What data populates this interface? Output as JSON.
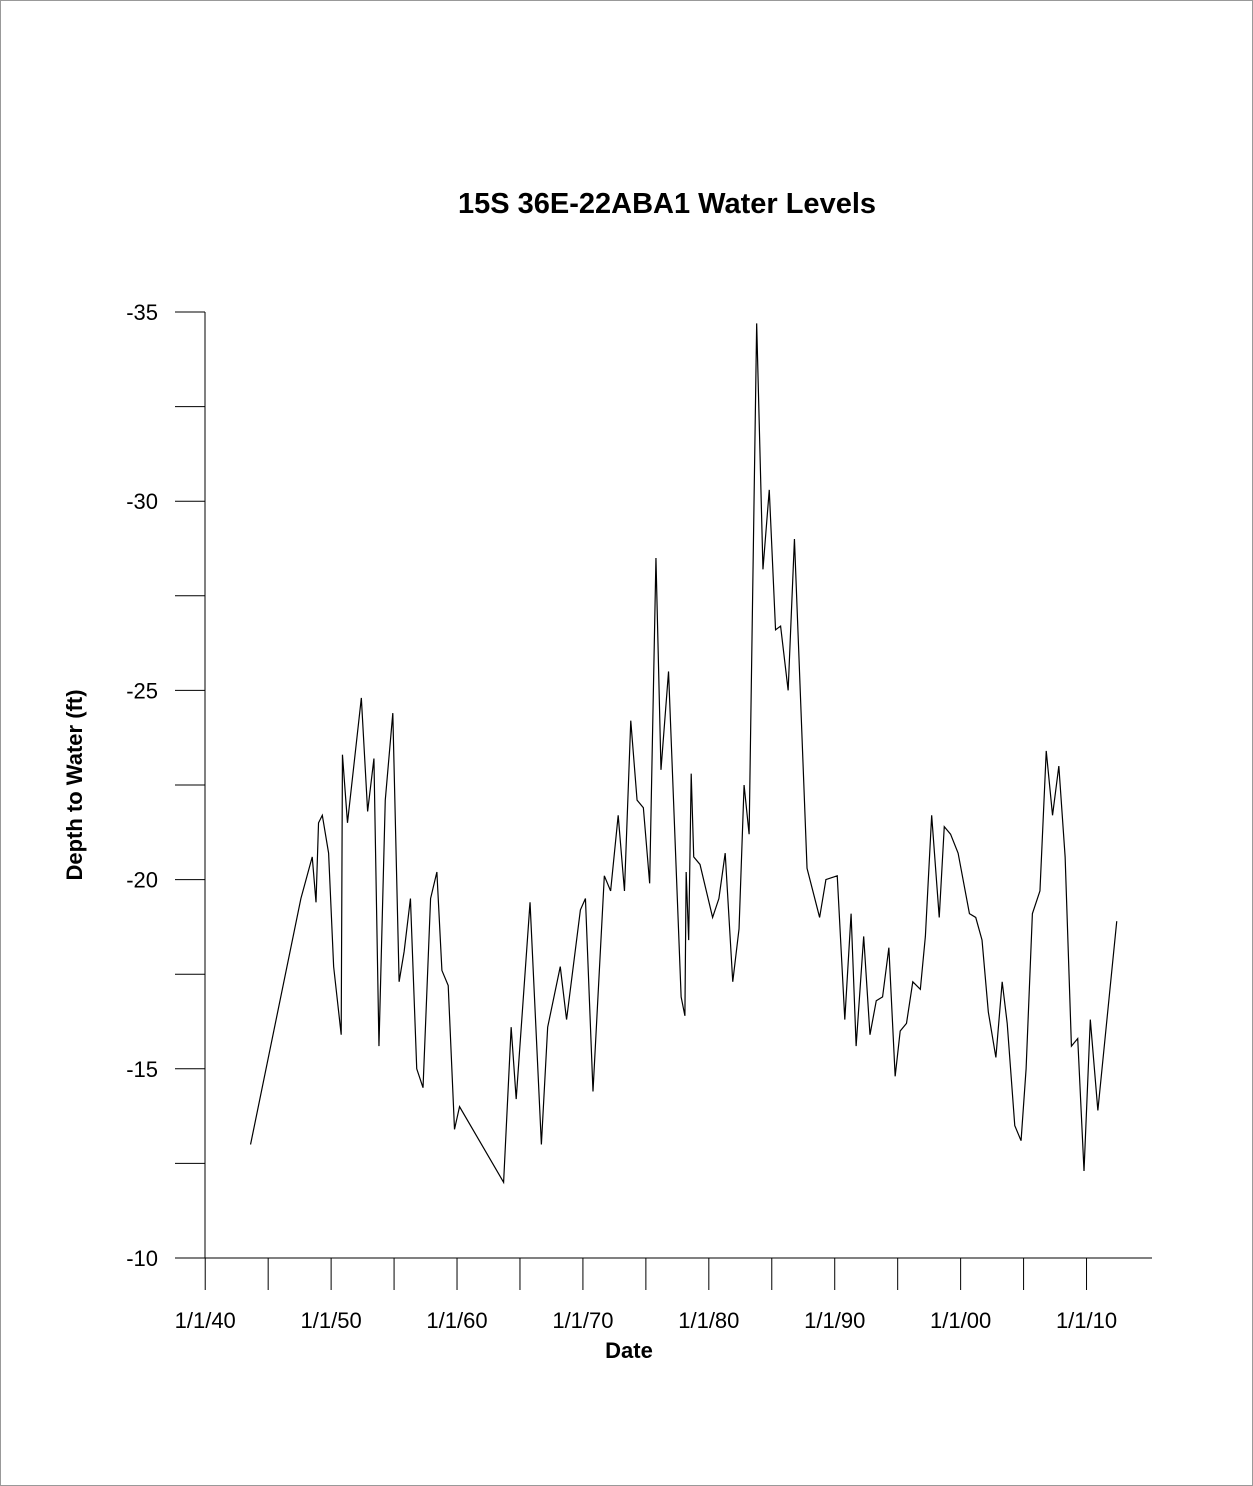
{
  "chart_data": {
    "type": "line",
    "title": "15S 36E-22ABA1 Water Levels",
    "x_label": "Date",
    "y_label": "Depth to Water (ft)",
    "color": "#000000",
    "xlim": [
      1937.6,
      2015.2
    ],
    "xticks": [
      {
        "value": 1940,
        "label": "1/1/40"
      },
      {
        "value": 1950,
        "label": "1/1/50"
      },
      {
        "value": 1960,
        "label": "1/1/60"
      },
      {
        "value": 1970,
        "label": "1/1/70"
      },
      {
        "value": 1980,
        "label": "1/1/80"
      },
      {
        "value": 1990,
        "label": "1/1/90"
      },
      {
        "value": 2000,
        "label": "1/1/00"
      },
      {
        "value": 2010,
        "label": "1/1/10"
      }
    ],
    "x_minor_ticks": [
      1945,
      1955,
      1965,
      1975,
      1985,
      1995,
      2005
    ],
    "ylim": [
      -10,
      -35
    ],
    "yticks": [
      -35,
      -30,
      -25,
      -20,
      -15,
      -10
    ],
    "y_minor_ticks": [
      -32.5,
      -27.5,
      -22.5,
      -17.5,
      -12.5
    ],
    "x": [
      1943.6,
      1947.6,
      1948.5,
      1948.8,
      1949.0,
      1949.3,
      1949.8,
      1950.2,
      1950.8,
      1950.9,
      1951.3,
      1952.4,
      1952.9,
      1953.4,
      1953.8,
      1954.3,
      1954.9,
      1955.4,
      1955.8,
      1956.3,
      1956.8,
      1957.3,
      1957.9,
      1958.4,
      1958.8,
      1959.3,
      1959.8,
      1960.2,
      1963.7,
      1964.3,
      1964.7,
      1965.8,
      1966.7,
      1967.2,
      1968.2,
      1968.7,
      1969.8,
      1970.2,
      1970.8,
      1971.7,
      1972.2,
      1972.8,
      1973.3,
      1973.8,
      1974.3,
      1974.8,
      1975.3,
      1975.8,
      1976.2,
      1976.8,
      1977.8,
      1978.1,
      1978.2,
      1978.4,
      1978.6,
      1978.8,
      1979.3,
      1980.3,
      1980.8,
      1981.3,
      1981.9,
      1982.4,
      1982.8,
      1983.2,
      1983.8,
      1984.3,
      1984.8,
      1985.3,
      1985.7,
      1986.3,
      1986.8,
      1987.8,
      1988.8,
      1989.3,
      1990.2,
      1990.8,
      1991.3,
      1991.7,
      1992.3,
      1992.8,
      1993.3,
      1993.8,
      1994.3,
      1994.8,
      1995.2,
      1995.7,
      1996.2,
      1996.8,
      1997.2,
      1997.7,
      1998.3,
      1998.7,
      1999.2,
      1999.8,
      2000.7,
      2001.2,
      2001.7,
      2002.2,
      2002.8,
      2003.3,
      2003.7,
      2004.3,
      2004.8,
      2005.2,
      2005.7,
      2006.3,
      2006.8,
      2007.3,
      2007.8,
      2008.3,
      2008.8,
      2009.3,
      2009.8,
      2010.3,
      2010.9,
      2012.4
    ],
    "values": [
      -13.0,
      -19.5,
      -20.6,
      -19.4,
      -21.5,
      -21.7,
      -20.7,
      -17.7,
      -15.9,
      -23.3,
      -21.5,
      -24.8,
      -21.8,
      -23.2,
      -15.6,
      -22.1,
      -24.4,
      -17.3,
      -18.1,
      -19.5,
      -15.0,
      -14.5,
      -19.5,
      -20.2,
      -17.6,
      -17.2,
      -13.4,
      -14.0,
      -12.0,
      -16.1,
      -14.2,
      -19.4,
      -13.0,
      -16.1,
      -17.7,
      -16.3,
      -19.2,
      -19.5,
      -14.4,
      -20.1,
      -19.7,
      -21.7,
      -19.7,
      -24.2,
      -22.1,
      -21.9,
      -19.9,
      -28.5,
      -22.9,
      -25.5,
      -16.9,
      -16.4,
      -20.2,
      -18.4,
      -22.8,
      -20.6,
      -20.4,
      -19.0,
      -19.5,
      -20.7,
      -17.3,
      -18.7,
      -22.5,
      -21.2,
      -34.7,
      -28.2,
      -30.3,
      -26.6,
      -26.7,
      -25.0,
      -29.0,
      -20.3,
      -19.0,
      -20.0,
      -20.1,
      -16.3,
      -19.1,
      -15.6,
      -18.5,
      -15.9,
      -16.8,
      -16.9,
      -18.2,
      -14.8,
      -16.0,
      -16.2,
      -17.3,
      -17.1,
      -18.5,
      -21.7,
      -19.0,
      -21.4,
      -21.2,
      -20.7,
      -19.1,
      -19.0,
      -18.4,
      -16.5,
      -15.3,
      -17.3,
      -16.2,
      -13.5,
      -13.1,
      -15.0,
      -19.1,
      -19.7,
      -23.4,
      -21.7,
      -23.0,
      -20.6,
      -15.6,
      -15.8,
      -12.3,
      -16.3,
      -13.9,
      -18.9
    ]
  }
}
